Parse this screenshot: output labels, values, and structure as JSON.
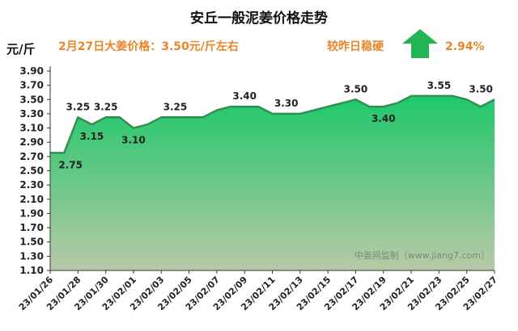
{
  "header": {
    "title": "安丘一般泥姜价格走势",
    "unit": "元/斤",
    "price_info": "2月27日大姜价格：3.50元/斤左右",
    "trend_text": "较昨日稳硬",
    "change_pct": "2.94%",
    "trend_icon": "up-arrow-icon",
    "arrow_color": "#22b455"
  },
  "watermark": "中姜网监制（www.jiang7.com）",
  "chart_data": {
    "type": "area",
    "title": "安丘一般泥姜价格走势",
    "ylabel": "元/斤",
    "ylim": [
      1.1,
      3.9
    ],
    "yticks": [
      "1.10",
      "1.30",
      "1.50",
      "1.70",
      "1.90",
      "2.10",
      "2.30",
      "2.50",
      "2.70",
      "2.90",
      "3.10",
      "3.30",
      "3.50",
      "3.70",
      "3.90"
    ],
    "x": [
      "23/01/26",
      "23/01/27",
      "23/01/28",
      "23/01/29",
      "23/01/30",
      "23/01/31",
      "23/02/01",
      "23/02/02",
      "23/02/03",
      "23/02/04",
      "23/02/05",
      "23/02/06",
      "23/02/07",
      "23/02/08",
      "23/02/09",
      "23/02/10",
      "23/02/11",
      "23/02/12",
      "23/02/13",
      "23/02/14",
      "23/02/15",
      "23/02/16",
      "23/02/17",
      "23/02/18",
      "23/02/19",
      "23/02/20",
      "23/02/21",
      "23/02/22",
      "23/02/23",
      "23/02/24",
      "23/02/25",
      "23/02/26",
      "23/02/27"
    ],
    "xticks": [
      "23/01/26",
      "23/01/28",
      "23/01/30",
      "23/02/01",
      "23/02/03",
      "23/02/05",
      "23/02/07",
      "23/02/09",
      "23/02/11",
      "23/02/13",
      "23/02/15",
      "23/02/17",
      "23/02/19",
      "23/02/21",
      "23/02/23",
      "23/02/25",
      "23/02/27"
    ],
    "values": [
      2.75,
      2.75,
      3.25,
      3.15,
      3.25,
      3.25,
      3.1,
      3.15,
      3.25,
      3.25,
      3.25,
      3.25,
      3.35,
      3.4,
      3.4,
      3.4,
      3.3,
      3.3,
      3.3,
      3.35,
      3.4,
      3.45,
      3.5,
      3.4,
      3.4,
      3.45,
      3.55,
      3.55,
      3.55,
      3.55,
      3.5,
      3.4,
      3.5
    ],
    "labels": [
      {
        "x": "23/01/27",
        "text": "2.75"
      },
      {
        "x": "23/01/28",
        "text": "3.25"
      },
      {
        "x": "23/01/29",
        "text": "3.15"
      },
      {
        "x": "23/01/30",
        "text": "3.25"
      },
      {
        "x": "23/02/01",
        "text": "3.10"
      },
      {
        "x": "23/02/04",
        "text": "3.25"
      },
      {
        "x": "23/02/09",
        "text": "3.40"
      },
      {
        "x": "23/02/12",
        "text": "3.30"
      },
      {
        "x": "23/02/17",
        "text": "3.50"
      },
      {
        "x": "23/02/19",
        "text": "3.40"
      },
      {
        "x": "23/02/23",
        "text": "3.55"
      },
      {
        "x": "23/02/27",
        "text": "3.50"
      }
    ],
    "line_color": "#2f8f52",
    "fill_top_color": "#1ec86a",
    "fill_bottom_color": "#b9c9a8",
    "grid": false,
    "legend": "none"
  }
}
